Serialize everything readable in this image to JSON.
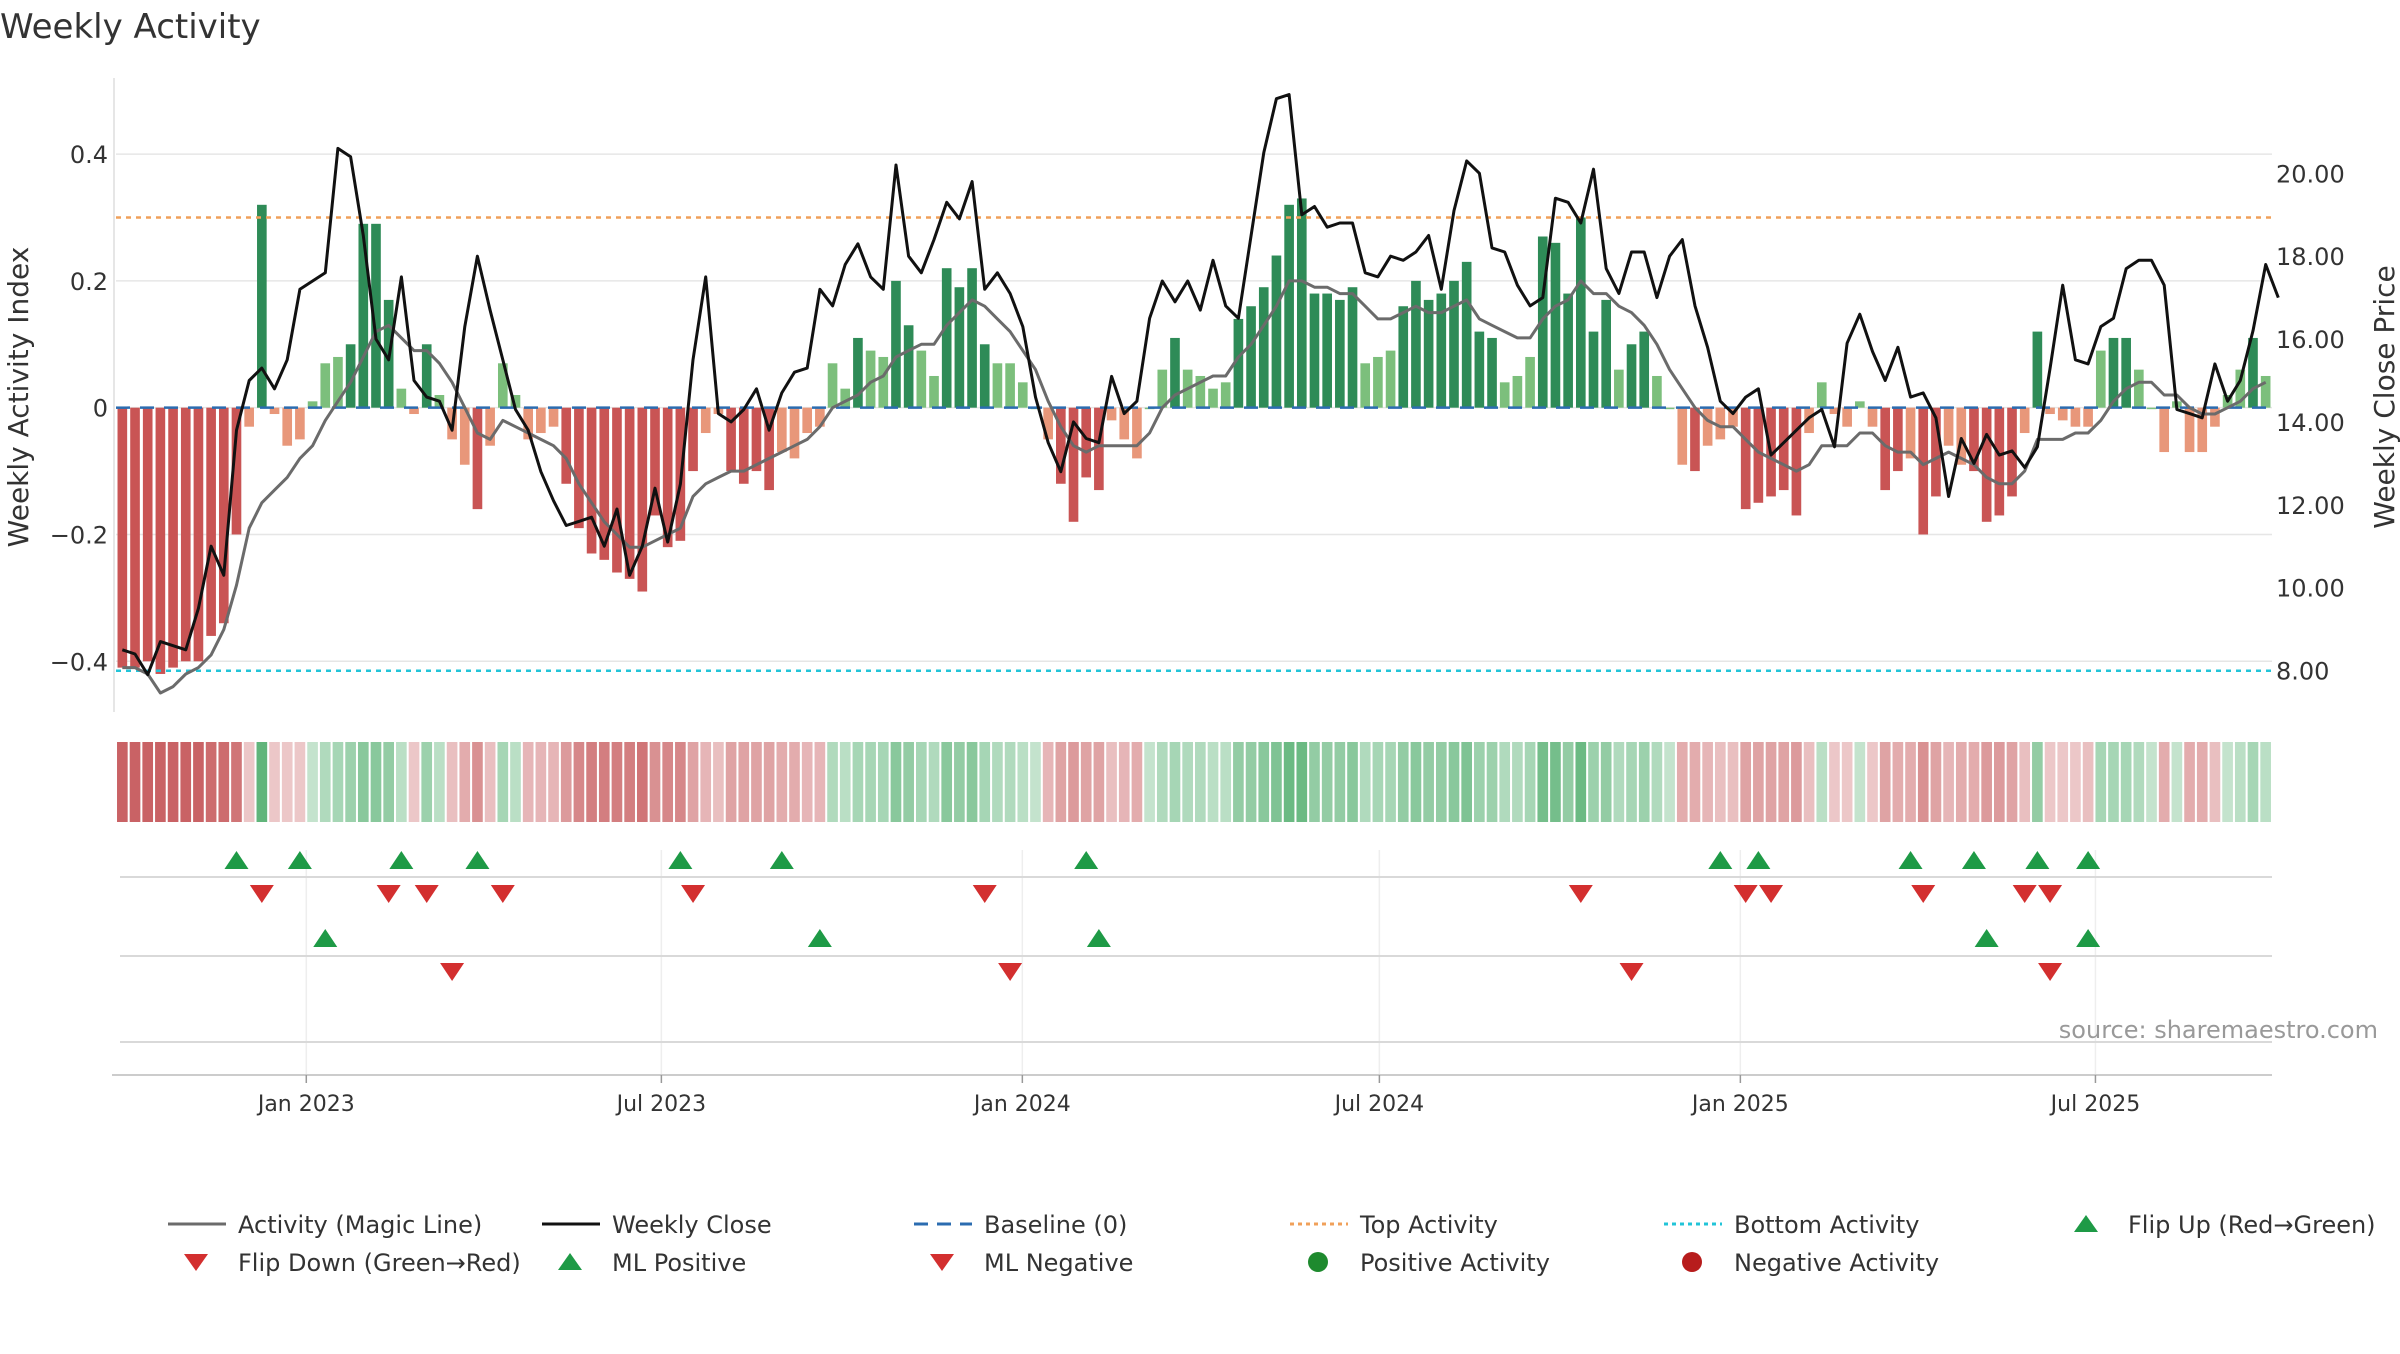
{
  "chart_data": {
    "type": "bar",
    "title": "Weekly Activity",
    "ylabel": "Weekly Activity Index",
    "y2label": "Weekly Close Price",
    "ylim": [
      -0.48,
      0.52
    ],
    "y2lim": [
      7.0,
      22.3
    ],
    "yticks": [
      {
        "v": 0.4,
        "label": "0.4"
      },
      {
        "v": 0.2,
        "label": "0.2"
      },
      {
        "v": 0.0,
        "label": "0"
      },
      {
        "v": -0.2,
        "label": "−0.2"
      },
      {
        "v": -0.4,
        "label": "−0.4"
      }
    ],
    "y2ticks": [
      "20.00",
      "18.00",
      "16.00",
      "14.00",
      "12.00",
      "10.00",
      "8.00"
    ],
    "x_start": "2022-09-26",
    "x_end": "2025-09-29",
    "xticks": [
      {
        "date": "2023-01-01",
        "label": "Jan 2023"
      },
      {
        "date": "2023-07-01",
        "label": "Jul 2023"
      },
      {
        "date": "2024-01-01",
        "label": "Jan 2024"
      },
      {
        "date": "2024-07-01",
        "label": "Jul 2024"
      },
      {
        "date": "2025-01-01",
        "label": "Jan 2025"
      },
      {
        "date": "2025-07-01",
        "label": "Jul 2025"
      }
    ],
    "baseline": 0.0,
    "top_activity": 0.3,
    "bottom_activity": -0.415,
    "activity": [
      -0.41,
      -0.41,
      -0.4,
      -0.42,
      -0.41,
      -0.4,
      -0.4,
      -0.36,
      -0.34,
      -0.2,
      -0.03,
      0.32,
      -0.01,
      -0.06,
      -0.05,
      0.01,
      0.07,
      0.08,
      0.1,
      0.29,
      0.29,
      0.17,
      0.03,
      -0.01,
      0.1,
      0.02,
      -0.05,
      -0.09,
      -0.16,
      -0.06,
      0.07,
      0.02,
      -0.05,
      -0.04,
      -0.03,
      -0.12,
      -0.19,
      -0.23,
      -0.24,
      -0.26,
      -0.27,
      -0.29,
      -0.17,
      -0.22,
      -0.21,
      -0.1,
      -0.04,
      -0.01,
      -0.1,
      -0.12,
      -0.1,
      -0.13,
      -0.07,
      -0.08,
      -0.04,
      -0.03,
      0.07,
      0.03,
      0.11,
      0.09,
      0.08,
      0.2,
      0.13,
      0.09,
      0.05,
      0.22,
      0.19,
      0.22,
      0.1,
      0.07,
      0.07,
      0.04,
      0.0,
      -0.05,
      -0.12,
      -0.18,
      -0.11,
      -0.13,
      -0.02,
      -0.05,
      -0.08,
      0.0,
      0.06,
      0.11,
      0.06,
      0.05,
      0.03,
      0.04,
      0.14,
      0.16,
      0.19,
      0.24,
      0.32,
      0.33,
      0.18,
      0.18,
      0.17,
      0.19,
      0.07,
      0.08,
      0.09,
      0.16,
      0.2,
      0.17,
      0.18,
      0.2,
      0.23,
      0.12,
      0.11,
      0.04,
      0.05,
      0.08,
      0.27,
      0.26,
      0.18,
      0.3,
      0.12,
      0.17,
      0.06,
      0.1,
      0.12,
      0.05,
      0.0,
      -0.09,
      -0.1,
      -0.06,
      -0.05,
      -0.03,
      -0.16,
      -0.15,
      -0.14,
      -0.13,
      -0.17,
      -0.04,
      0.04,
      -0.01,
      -0.03,
      0.01,
      -0.03,
      -0.13,
      -0.1,
      -0.08,
      -0.2,
      -0.14,
      -0.06,
      -0.09,
      -0.1,
      -0.18,
      -0.17,
      -0.14,
      -0.04,
      0.12,
      -0.01,
      -0.02,
      -0.03,
      -0.03,
      0.09,
      0.11,
      0.11,
      0.06,
      0.0,
      -0.07,
      0.01,
      -0.07,
      -0.07,
      -0.03,
      0.02,
      0.06,
      0.11,
      0.05
    ],
    "magic_line": [
      -0.41,
      -0.41,
      -0.42,
      -0.45,
      -0.44,
      -0.42,
      -0.41,
      -0.39,
      -0.35,
      -0.28,
      -0.19,
      -0.15,
      -0.13,
      -0.11,
      -0.08,
      -0.06,
      -0.02,
      0.01,
      0.04,
      0.08,
      0.12,
      0.13,
      0.11,
      0.09,
      0.09,
      0.07,
      0.04,
      0.0,
      -0.04,
      -0.05,
      -0.02,
      -0.03,
      -0.04,
      -0.05,
      -0.06,
      -0.08,
      -0.12,
      -0.15,
      -0.18,
      -0.2,
      -0.22,
      -0.22,
      -0.21,
      -0.2,
      -0.19,
      -0.14,
      -0.12,
      -0.11,
      -0.1,
      -0.1,
      -0.09,
      -0.08,
      -0.07,
      -0.06,
      -0.05,
      -0.03,
      0.0,
      0.01,
      0.02,
      0.04,
      0.05,
      0.08,
      0.09,
      0.1,
      0.1,
      0.13,
      0.15,
      0.17,
      0.16,
      0.14,
      0.12,
      0.09,
      0.06,
      0.01,
      -0.03,
      -0.06,
      -0.07,
      -0.06,
      -0.06,
      -0.06,
      -0.06,
      -0.04,
      0.0,
      0.02,
      0.03,
      0.04,
      0.05,
      0.05,
      0.08,
      0.1,
      0.13,
      0.16,
      0.2,
      0.2,
      0.19,
      0.19,
      0.18,
      0.18,
      0.16,
      0.14,
      0.14,
      0.15,
      0.16,
      0.15,
      0.15,
      0.16,
      0.17,
      0.14,
      0.13,
      0.12,
      0.11,
      0.11,
      0.14,
      0.16,
      0.17,
      0.2,
      0.18,
      0.18,
      0.16,
      0.15,
      0.13,
      0.1,
      0.06,
      0.03,
      0.0,
      -0.02,
      -0.03,
      -0.03,
      -0.05,
      -0.07,
      -0.08,
      -0.09,
      -0.1,
      -0.09,
      -0.06,
      -0.06,
      -0.06,
      -0.04,
      -0.04,
      -0.06,
      -0.07,
      -0.07,
      -0.09,
      -0.08,
      -0.07,
      -0.08,
      -0.09,
      -0.11,
      -0.12,
      -0.12,
      -0.1,
      -0.05,
      -0.05,
      -0.05,
      -0.04,
      -0.04,
      -0.02,
      0.01,
      0.03,
      0.04,
      0.04,
      0.02,
      0.02,
      0.0,
      -0.01,
      -0.01,
      0.0,
      0.01,
      0.03,
      0.04
    ],
    "close": [
      8.5,
      8.4,
      7.9,
      8.7,
      8.6,
      8.5,
      9.5,
      11.0,
      10.3,
      13.8,
      15.0,
      15.3,
      14.8,
      15.5,
      17.2,
      17.4,
      17.6,
      20.6,
      20.4,
      18.5,
      16.0,
      15.5,
      17.5,
      15.0,
      14.6,
      14.5,
      13.8,
      16.3,
      18.0,
      16.7,
      15.5,
      14.3,
      13.8,
      12.8,
      12.1,
      11.5,
      11.6,
      11.7,
      11.0,
      11.9,
      10.3,
      11.0,
      12.4,
      11.1,
      12.5,
      15.5,
      17.5,
      14.2,
      14.0,
      14.3,
      14.8,
      13.8,
      14.7,
      15.2,
      15.3,
      17.2,
      16.8,
      17.8,
      18.3,
      17.5,
      17.2,
      20.2,
      18.0,
      17.6,
      18.4,
      19.3,
      18.9,
      19.8,
      17.2,
      17.6,
      17.1,
      16.3,
      14.6,
      13.5,
      12.8,
      14.0,
      13.6,
      13.5,
      15.1,
      14.2,
      14.5,
      16.5,
      17.4,
      16.9,
      17.4,
      16.7,
      17.9,
      16.8,
      16.5,
      18.5,
      20.5,
      21.8,
      21.9,
      19.0,
      19.2,
      18.7,
      18.8,
      18.8,
      17.6,
      17.5,
      18.0,
      17.9,
      18.1,
      18.5,
      17.2,
      19.1,
      20.3,
      20.0,
      18.2,
      18.1,
      17.3,
      16.8,
      17.0,
      19.4,
      19.3,
      18.8,
      20.1,
      17.7,
      17.1,
      18.1,
      18.1,
      17.0,
      18.0,
      18.4,
      16.8,
      15.8,
      14.5,
      14.2,
      14.6,
      14.8,
      13.2,
      13.5,
      13.8,
      14.1,
      14.3,
      13.4,
      15.9,
      16.6,
      15.7,
      15.0,
      15.8,
      14.6,
      14.7,
      14.1,
      12.2,
      13.6,
      13.0,
      13.7,
      13.2,
      13.3,
      12.9,
      13.4,
      15.3,
      17.3,
      15.5,
      15.4,
      16.3,
      16.5,
      17.7,
      17.9,
      17.9,
      17.3,
      14.3,
      14.2,
      14.1,
      15.4,
      14.5,
      15.0,
      16.2,
      17.8,
      17.0
    ],
    "ribbon_strength": [
      0.85,
      0.85,
      0.85,
      0.85,
      0.85,
      0.85,
      0.85,
      0.8,
      0.8,
      0.75,
      0.3,
      0.8,
      0.3,
      0.3,
      0.3,
      0.3,
      0.4,
      0.45,
      0.5,
      0.6,
      0.6,
      0.55,
      0.35,
      0.3,
      0.5,
      0.35,
      0.35,
      0.45,
      0.6,
      0.35,
      0.45,
      0.35,
      0.4,
      0.4,
      0.4,
      0.55,
      0.65,
      0.7,
      0.7,
      0.7,
      0.7,
      0.75,
      0.6,
      0.65,
      0.65,
      0.5,
      0.4,
      0.35,
      0.5,
      0.5,
      0.5,
      0.5,
      0.45,
      0.45,
      0.4,
      0.4,
      0.4,
      0.35,
      0.45,
      0.45,
      0.45,
      0.6,
      0.55,
      0.45,
      0.4,
      0.6,
      0.55,
      0.6,
      0.45,
      0.4,
      0.4,
      0.35,
      0.3,
      0.4,
      0.5,
      0.55,
      0.5,
      0.5,
      0.35,
      0.4,
      0.45,
      0.3,
      0.4,
      0.45,
      0.4,
      0.4,
      0.35,
      0.35,
      0.55,
      0.55,
      0.6,
      0.65,
      0.75,
      0.75,
      0.55,
      0.55,
      0.55,
      0.6,
      0.4,
      0.45,
      0.45,
      0.55,
      0.6,
      0.55,
      0.55,
      0.6,
      0.65,
      0.5,
      0.5,
      0.4,
      0.4,
      0.45,
      0.7,
      0.7,
      0.55,
      0.75,
      0.5,
      0.55,
      0.4,
      0.45,
      0.5,
      0.4,
      0.3,
      0.45,
      0.45,
      0.4,
      0.35,
      0.35,
      0.5,
      0.5,
      0.5,
      0.5,
      0.55,
      0.35,
      0.35,
      0.3,
      0.3,
      0.3,
      0.3,
      0.5,
      0.45,
      0.45,
      0.6,
      0.5,
      0.4,
      0.45,
      0.45,
      0.55,
      0.55,
      0.5,
      0.35,
      0.55,
      0.3,
      0.3,
      0.3,
      0.35,
      0.45,
      0.45,
      0.45,
      0.4,
      0.3,
      0.45,
      0.3,
      0.45,
      0.45,
      0.35,
      0.3,
      0.35,
      0.45,
      0.35
    ],
    "flip_up": [
      9,
      14,
      22,
      28,
      44,
      52,
      76,
      126,
      129,
      141,
      146,
      151,
      155
    ],
    "flip_down": [
      11,
      21,
      24,
      30,
      45,
      68,
      115,
      128,
      130,
      142,
      150,
      152
    ],
    "ml_positive": [
      16,
      55,
      77,
      147,
      155
    ],
    "ml_negative": [
      26,
      70,
      119,
      152
    ],
    "source_note": "source: sharemaestro.com",
    "legend": [
      {
        "label": "Activity (Magic Line)",
        "kind": "line",
        "color": "#6b6b6b"
      },
      {
        "label": "Weekly Close",
        "kind": "line",
        "color": "#111111"
      },
      {
        "label": "Baseline (0)",
        "kind": "dash",
        "color": "#2b6cb0"
      },
      {
        "label": "Top Activity",
        "kind": "dot",
        "color": "#f0a05a"
      },
      {
        "label": "Bottom Activity",
        "kind": "dot",
        "color": "#22c4d8"
      },
      {
        "label": "Flip Up (Red→Green)",
        "kind": "up",
        "color": "#1e9a46"
      },
      {
        "label": "Flip Down (Green→Red)",
        "kind": "down",
        "color": "#d32f2f"
      },
      {
        "label": "ML Positive",
        "kind": "up",
        "color": "#1e9a46"
      },
      {
        "label": "ML Negative",
        "kind": "down",
        "color": "#d32f2f"
      },
      {
        "label": "Positive Activity",
        "kind": "circle",
        "color": "#1e8a2e"
      },
      {
        "label": "Negative Activity",
        "kind": "circle",
        "color": "#b71c1c"
      }
    ],
    "colors": {
      "pos_strong": "#2e8b57",
      "pos_light": "#7cbf7c",
      "neg_strong": "#c95454",
      "neg_light": "#e8977a",
      "ribbon_green": "#3aa35a",
      "ribbon_red": "#c0474a",
      "close_line": "#111111",
      "magic_line": "#6b6b6b",
      "baseline": "#2b6cb0",
      "top": "#f0a05a",
      "bottom": "#22c4d8",
      "up_marker": "#1e9a46",
      "down_marker": "#d32f2f",
      "grid": "#e6e6e6"
    }
  }
}
